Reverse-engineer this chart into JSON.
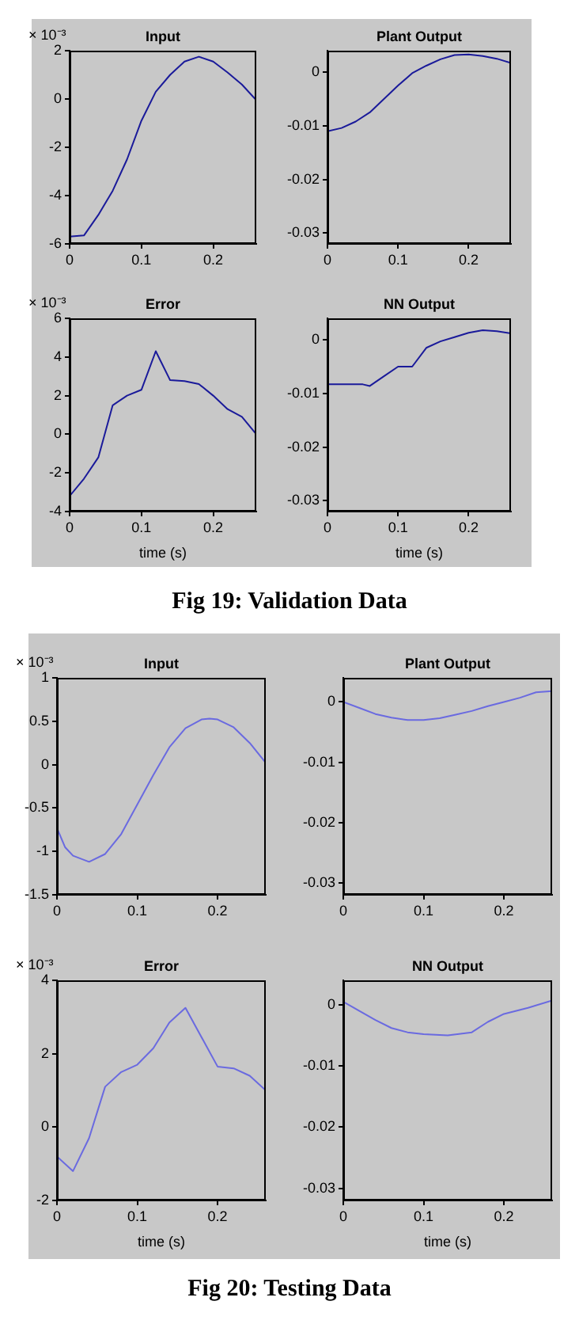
{
  "chart_data": [
    {
      "type": "line",
      "title": "Input",
      "ylabel": "× 10⁻³",
      "x": [
        0,
        0.02,
        0.04,
        0.06,
        0.08,
        0.1,
        0.12,
        0.14,
        0.16,
        0.18,
        0.2,
        0.22,
        0.24,
        0.26
      ],
      "series": [
        {
          "color": "#1a1a9a",
          "values": [
            -5.7,
            -5.65,
            -4.8,
            -3.8,
            -2.5,
            -0.9,
            0.3,
            1.0,
            1.55,
            1.75,
            1.55,
            1.1,
            0.6,
            -0.05
          ]
        }
      ],
      "xlim": [
        0,
        0.26
      ],
      "xticks": [
        0,
        0.1,
        0.2
      ],
      "ylim": [
        -6,
        2
      ],
      "yticks": [
        -6,
        -4,
        -2,
        0,
        2
      ]
    },
    {
      "type": "line",
      "title": "Plant Output",
      "x": [
        0,
        0.02,
        0.04,
        0.06,
        0.08,
        0.1,
        0.12,
        0.14,
        0.16,
        0.18,
        0.2,
        0.22,
        0.24,
        0.26
      ],
      "series": [
        {
          "color": "#1a1a9a",
          "values": [
            -0.011,
            -0.0104,
            -0.0092,
            -0.0075,
            -0.005,
            -0.0025,
            -0.0002,
            0.0012,
            0.0024,
            0.0032,
            0.0033,
            0.003,
            0.0025,
            0.0017
          ]
        }
      ],
      "xlim": [
        0,
        0.26
      ],
      "xticks": [
        0,
        0.1,
        0.2
      ],
      "ylim": [
        -0.032,
        0.004
      ],
      "yticks": [
        -0.03,
        -0.02,
        -0.01,
        0
      ]
    },
    {
      "type": "line",
      "title": "Error",
      "ylabel": "× 10⁻³",
      "xlabel": "time (s)",
      "x": [
        0,
        0.02,
        0.04,
        0.06,
        0.08,
        0.1,
        0.12,
        0.14,
        0.16,
        0.18,
        0.2,
        0.22,
        0.24,
        0.26
      ],
      "series": [
        {
          "color": "#1a1a9a",
          "values": [
            -3.2,
            -2.3,
            -1.2,
            1.5,
            2.0,
            2.3,
            4.3,
            2.8,
            2.75,
            2.6,
            2.0,
            1.3,
            0.9,
            0.0
          ]
        }
      ],
      "xlim": [
        0,
        0.26
      ],
      "xticks": [
        0,
        0.1,
        0.2
      ],
      "ylim": [
        -4,
        6
      ],
      "yticks": [
        -4,
        -2,
        0,
        2,
        4,
        6
      ]
    },
    {
      "type": "line",
      "title": "NN Output",
      "xlabel": "time (s)",
      "x": [
        0,
        0.05,
        0.06,
        0.08,
        0.1,
        0.12,
        0.14,
        0.16,
        0.18,
        0.2,
        0.22,
        0.24,
        0.26
      ],
      "series": [
        {
          "color": "#1a1a9a",
          "values": [
            -0.0083,
            -0.0083,
            -0.0086,
            -0.0068,
            -0.005,
            -0.005,
            -0.0015,
            -0.0003,
            0.0005,
            0.0013,
            0.0018,
            0.0016,
            0.0012
          ]
        }
      ],
      "xlim": [
        0,
        0.26
      ],
      "xticks": [
        0,
        0.1,
        0.2
      ],
      "ylim": [
        -0.032,
        0.004
      ],
      "yticks": [
        -0.03,
        -0.02,
        -0.01,
        0
      ],
      "annotations": [
        "Fig 19: Validation Data"
      ]
    },
    {
      "type": "line",
      "title": "Input",
      "ylabel": "× 10⁻³",
      "x": [
        0,
        0.01,
        0.02,
        0.04,
        0.06,
        0.08,
        0.1,
        0.12,
        0.14,
        0.16,
        0.18,
        0.19,
        0.2,
        0.22,
        0.24,
        0.26
      ],
      "series": [
        {
          "color": "#6a6ae0",
          "values": [
            -0.73,
            -0.95,
            -1.05,
            -1.12,
            -1.03,
            -0.8,
            -0.46,
            -0.12,
            0.2,
            0.42,
            0.52,
            0.53,
            0.52,
            0.43,
            0.25,
            0.02
          ]
        }
      ],
      "xlim": [
        0,
        0.26
      ],
      "xticks": [
        0,
        0.1,
        0.2
      ],
      "ylim": [
        -1.5,
        1
      ],
      "yticks": [
        -1.5,
        -1,
        -0.5,
        0,
        0.5,
        1
      ]
    },
    {
      "type": "line",
      "title": "Plant Output",
      "x": [
        0,
        0.02,
        0.04,
        0.06,
        0.08,
        0.1,
        0.12,
        0.14,
        0.16,
        0.18,
        0.2,
        0.22,
        0.24,
        0.26
      ],
      "series": [
        {
          "color": "#6a6ae0",
          "values": [
            0,
            -0.001,
            -0.002,
            -0.0026,
            -0.003,
            -0.003,
            -0.0027,
            -0.0021,
            -0.0015,
            -0.0007,
            0,
            0.0007,
            0.0016,
            0.0018
          ]
        }
      ],
      "xlim": [
        0,
        0.26
      ],
      "xticks": [
        0,
        0.1,
        0.2
      ],
      "ylim": [
        -0.032,
        0.004
      ],
      "yticks": [
        -0.03,
        -0.02,
        -0.01,
        0
      ]
    },
    {
      "type": "line",
      "title": "Error",
      "ylabel": "× 10⁻³",
      "xlabel": "time (s)",
      "x": [
        0,
        0.02,
        0.04,
        0.06,
        0.08,
        0.1,
        0.12,
        0.14,
        0.16,
        0.2,
        0.22,
        0.24,
        0.26
      ],
      "series": [
        {
          "color": "#6a6ae0",
          "values": [
            -0.8,
            -1.2,
            -0.3,
            1.1,
            1.5,
            1.7,
            2.15,
            2.85,
            3.25,
            1.65,
            1.6,
            1.4,
            1.0
          ]
        }
      ],
      "xlim": [
        0,
        0.26
      ],
      "xticks": [
        0,
        0.1,
        0.2
      ],
      "ylim": [
        -2,
        4
      ],
      "yticks": [
        -2,
        0,
        2,
        4
      ]
    },
    {
      "type": "line",
      "title": "NN Output",
      "xlabel": "time (s)",
      "x": [
        0,
        0.02,
        0.04,
        0.06,
        0.08,
        0.1,
        0.13,
        0.16,
        0.18,
        0.2,
        0.23,
        0.26
      ],
      "series": [
        {
          "color": "#6a6ae0",
          "values": [
            0.0005,
            -0.001,
            -0.0025,
            -0.0038,
            -0.0045,
            -0.0048,
            -0.005,
            -0.0045,
            -0.0028,
            -0.0015,
            -0.0005,
            0.0007
          ]
        }
      ],
      "xlim": [
        0,
        0.26
      ],
      "xticks": [
        0,
        0.1,
        0.2
      ],
      "ylim": [
        -0.032,
        0.004
      ],
      "yticks": [
        -0.03,
        -0.02,
        -0.01,
        0
      ],
      "annotations": [
        "Fig 20: Testing Data"
      ]
    }
  ]
}
